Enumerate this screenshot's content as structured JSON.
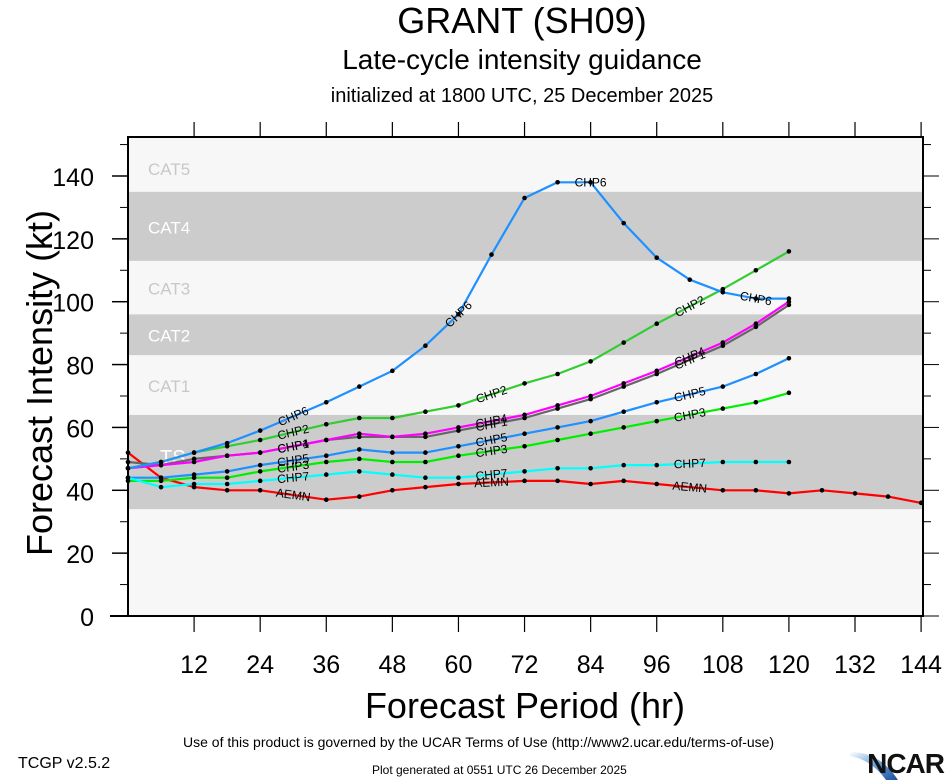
{
  "header": {
    "title": "GRANT (SH09)",
    "subtitle": "Late-cycle intensity guidance",
    "initialized": "initialized at 1800 UTC, 25 December 2025"
  },
  "footer": {
    "terms": "Use of this product is governed by the UCAR Terms of Use (http://www2.ucar.edu/terms-of-use)",
    "version": "TCGP v2.5.2",
    "generated": "Plot generated at 0551 UTC   26 December 2025",
    "logo": "NCAR"
  },
  "colors": {
    "band_dark": "#cccccc",
    "band_light": "#f7f7f7",
    "band_label_on_dark": "#ffffff",
    "band_label_on_light": "#c8c8c8"
  },
  "chart_data": {
    "type": "line",
    "title": "GRANT (SH09)",
    "subtitle": "Late-cycle intensity guidance",
    "xlabel": "Forecast Period (hr)",
    "ylabel": "Forecast Intensity (kt)",
    "xlim": [
      0,
      144
    ],
    "ylim": [
      0,
      150
    ],
    "xticks": [
      12,
      24,
      36,
      48,
      60,
      72,
      84,
      96,
      108,
      120,
      132,
      144
    ],
    "yticks": [
      0,
      20,
      40,
      60,
      80,
      100,
      120,
      140
    ],
    "grid": false,
    "legend": "inline labels on lines",
    "bands": [
      {
        "label": "TS",
        "min": 34,
        "max": 64,
        "shade": "dark"
      },
      {
        "label": "CAT1",
        "min": 64,
        "max": 83,
        "shade": "light"
      },
      {
        "label": "CAT2",
        "min": 83,
        "max": 96,
        "shade": "dark"
      },
      {
        "label": "CAT3",
        "min": 96,
        "max": 113,
        "shade": "light"
      },
      {
        "label": "CAT4",
        "min": 113,
        "max": 135,
        "shade": "dark"
      },
      {
        "label": "CAT5",
        "min": 135,
        "max": 150,
        "shade": "light"
      }
    ],
    "series": [
      {
        "name": "AEMN",
        "color": "#ff0000",
        "x": [
          0,
          6,
          12,
          18,
          24,
          36,
          42,
          48,
          54,
          60,
          72,
          78,
          84,
          90,
          96,
          108,
          114,
          120,
          126,
          132,
          138,
          144
        ],
        "y": [
          52,
          44,
          41,
          40,
          40,
          37,
          38,
          40,
          41,
          42,
          43,
          43,
          42,
          43,
          42,
          40,
          40,
          39,
          40,
          39,
          38,
          36
        ],
        "label_at": [
          30,
          66,
          102
        ]
      },
      {
        "name": "CHP1",
        "color": "#666666",
        "x": [
          0,
          6,
          12,
          18,
          24,
          36,
          42,
          48,
          54,
          60,
          72,
          78,
          84,
          90,
          96,
          108,
          114,
          120
        ],
        "y": [
          49,
          48,
          50,
          51,
          52,
          56,
          57,
          57,
          57,
          59,
          63,
          66,
          69,
          73,
          77,
          86,
          92,
          99
        ],
        "label_at": [
          30,
          66,
          102
        ]
      },
      {
        "name": "CHP4",
        "color": "#ff00ff",
        "x": [
          0,
          6,
          12,
          18,
          24,
          36,
          42,
          48,
          54,
          60,
          72,
          78,
          84,
          90,
          96,
          108,
          114,
          120
        ],
        "y": [
          47,
          48,
          49,
          51,
          52,
          56,
          58,
          57,
          58,
          60,
          64,
          67,
          70,
          74,
          78,
          87,
          93,
          100
        ],
        "label_at": [
          30,
          66,
          102
        ]
      },
      {
        "name": "CHP2",
        "color": "#33cc33",
        "x": [
          0,
          6,
          12,
          18,
          24,
          36,
          42,
          48,
          54,
          60,
          72,
          78,
          84,
          90,
          96,
          108,
          114,
          120
        ],
        "y": [
          47,
          49,
          52,
          54,
          56,
          61,
          63,
          63,
          65,
          67,
          74,
          77,
          81,
          87,
          93,
          104,
          110,
          116
        ],
        "label_at": [
          30,
          66,
          102
        ]
      },
      {
        "name": "CHP5",
        "color": "#1e90ff",
        "x": [
          0,
          6,
          12,
          18,
          24,
          36,
          42,
          48,
          54,
          60,
          72,
          78,
          84,
          90,
          96,
          108,
          114,
          120
        ],
        "y": [
          44,
          44,
          45,
          46,
          48,
          51,
          53,
          52,
          52,
          54,
          58,
          60,
          62,
          65,
          68,
          73,
          77,
          82
        ],
        "label_at": [
          30,
          66,
          102
        ]
      },
      {
        "name": "CHP3",
        "color": "#00ee00",
        "x": [
          0,
          6,
          12,
          18,
          24,
          36,
          42,
          48,
          54,
          60,
          72,
          78,
          84,
          90,
          96,
          108,
          114,
          120
        ],
        "y": [
          43,
          43,
          44,
          44,
          46,
          49,
          50,
          49,
          49,
          51,
          54,
          56,
          58,
          60,
          62,
          66,
          68,
          71
        ],
        "label_at": [
          30,
          66,
          102
        ]
      },
      {
        "name": "CHP7",
        "color": "#00ffff",
        "x": [
          0,
          6,
          12,
          18,
          24,
          36,
          42,
          48,
          54,
          60,
          72,
          78,
          84,
          90,
          96,
          108,
          114,
          120
        ],
        "y": [
          44,
          41,
          42,
          42,
          43,
          45,
          46,
          45,
          44,
          44,
          46,
          47,
          47,
          48,
          48,
          49,
          49,
          49
        ],
        "label_at": [
          30,
          66,
          102
        ]
      },
      {
        "name": "CHP6",
        "color": "#1e90ff",
        "x": [
          0,
          6,
          12,
          18,
          24,
          36,
          42,
          48,
          54,
          60,
          66,
          72,
          78,
          84,
          90,
          96,
          102,
          108,
          114,
          120
        ],
        "y": [
          47,
          49,
          52,
          55,
          59,
          68,
          73,
          78,
          86,
          96,
          115,
          133,
          138,
          138,
          125,
          114,
          107,
          103,
          101,
          101
        ],
        "label_at": [
          30,
          60,
          84,
          114
        ]
      }
    ]
  }
}
